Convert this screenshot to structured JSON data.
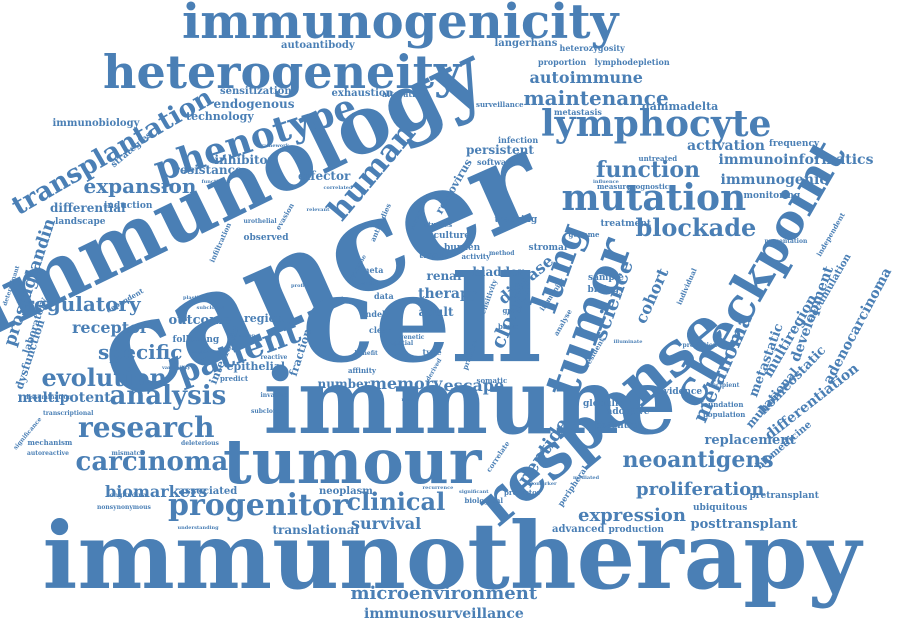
{
  "color": "#4a7fb5",
  "words": [
    {
      "text": "immunotherapy",
      "weight": 100,
      "orientation": "horizontal"
    },
    {
      "text": "cancer",
      "weight": 100,
      "orientation": "rotated"
    },
    {
      "text": "immune",
      "weight": 92,
      "orientation": "horizontal"
    },
    {
      "text": "immunology",
      "weight": 88,
      "orientation": "rotated"
    },
    {
      "text": "cell",
      "weight": 90,
      "orientation": "horizontal"
    },
    {
      "text": "tumour",
      "weight": 80,
      "orientation": "horizontal"
    },
    {
      "text": "response",
      "weight": 78,
      "orientation": "rotated"
    },
    {
      "text": "tumor",
      "weight": 70,
      "orientation": "rotated"
    },
    {
      "text": "immunogenicity",
      "weight": 62,
      "orientation": "horizontal"
    },
    {
      "text": "heterogeneity",
      "weight": 58,
      "orientation": "horizontal"
    },
    {
      "text": "checkpoint",
      "weight": 56,
      "orientation": "rotated"
    },
    {
      "text": "phenotype",
      "weight": 52,
      "orientation": "rotated"
    },
    {
      "text": "lymphocyte",
      "weight": 50,
      "orientation": "horizontal"
    },
    {
      "text": "mutation",
      "weight": 48,
      "orientation": "horizontal"
    },
    {
      "text": "transplantation",
      "weight": 44,
      "orientation": "rotated"
    },
    {
      "text": "lung",
      "weight": 46,
      "orientation": "rotated"
    },
    {
      "text": "progenitor",
      "weight": 42,
      "orientation": "horizontal"
    },
    {
      "text": "patient",
      "weight": 42,
      "orientation": "rotated"
    },
    {
      "text": "carcinoma",
      "weight": 40,
      "orientation": "horizontal"
    },
    {
      "text": "research",
      "weight": 40,
      "orientation": "horizontal"
    },
    {
      "text": "analysis",
      "weight": 38,
      "orientation": "horizontal"
    },
    {
      "text": "human",
      "weight": 38,
      "orientation": "rotated"
    },
    {
      "text": "clinical",
      "weight": 34,
      "orientation": "horizontal"
    },
    {
      "text": "neoantigens",
      "weight": 32,
      "orientation": "horizontal"
    },
    {
      "text": "blockade",
      "weight": 32,
      "orientation": "horizontal"
    },
    {
      "text": "evolution",
      "weight": 32,
      "orientation": "horizontal"
    },
    {
      "text": "expansion",
      "weight": 28,
      "orientation": "horizontal"
    },
    {
      "text": "function",
      "weight": 30,
      "orientation": "horizontal"
    },
    {
      "text": "specific",
      "weight": 30,
      "orientation": "horizontal"
    },
    {
      "text": "regulatory",
      "weight": 28,
      "orientation": "horizontal"
    },
    {
      "text": "maintenance",
      "weight": 26,
      "orientation": "horizontal"
    },
    {
      "text": "proliferation",
      "weight": 26,
      "orientation": "horizontal"
    },
    {
      "text": "expression",
      "weight": 26,
      "orientation": "horizontal"
    },
    {
      "text": "microenvironment",
      "weight": 26,
      "orientation": "horizontal"
    },
    {
      "text": "melanoma",
      "weight": 26,
      "orientation": "rotated"
    },
    {
      "text": "peptide",
      "weight": 26,
      "orientation": "rotated"
    },
    {
      "text": "clonal",
      "weight": 26,
      "orientation": "rotated"
    },
    {
      "text": "science",
      "weight": 26,
      "orientation": "rotated"
    },
    {
      "text": "disease",
      "weight": 24,
      "orientation": "rotated"
    },
    {
      "text": "memory",
      "weight": 24,
      "orientation": "horizontal"
    },
    {
      "text": "biomarkers",
      "weight": 22,
      "orientation": "horizontal"
    },
    {
      "text": "autoimmune",
      "weight": 22,
      "orientation": "horizontal"
    },
    {
      "text": "survival",
      "weight": 22,
      "orientation": "horizontal"
    },
    {
      "text": "receptor",
      "weight": 22,
      "orientation": "horizontal"
    },
    {
      "text": "prostaglandin",
      "weight": 22,
      "orientation": "rotated"
    },
    {
      "text": "immunosurveillance",
      "weight": 20,
      "orientation": "horizontal"
    },
    {
      "text": "escape",
      "weight": 20,
      "orientation": "horizontal"
    },
    {
      "text": "multipotent",
      "weight": 18,
      "orientation": "horizontal"
    },
    {
      "text": "differentiation",
      "weight": 18,
      "orientation": "rotated"
    },
    {
      "text": "immunoinformatics",
      "weight": 16,
      "orientation": "horizontal"
    },
    {
      "text": "activation",
      "weight": 16,
      "orientation": "horizontal"
    },
    {
      "text": "immunogenic",
      "weight": 16,
      "orientation": "horizontal"
    },
    {
      "text": "metastatic",
      "weight": 16,
      "orientation": "rotated"
    },
    {
      "text": "homeostatic",
      "weight": 16,
      "orientation": "rotated"
    },
    {
      "text": "multiregion",
      "weight": 16,
      "orientation": "rotated"
    },
    {
      "text": "development",
      "weight": 16,
      "orientation": "rotated"
    },
    {
      "text": "adenocarcinoma",
      "weight": 16,
      "orientation": "rotated"
    },
    {
      "text": "mutational",
      "weight": 15,
      "orientation": "rotated"
    },
    {
      "text": "cohort",
      "weight": 18,
      "orientation": "rotated"
    },
    {
      "text": "therapy",
      "weight": 16,
      "orientation": "horizontal"
    },
    {
      "text": "outcome",
      "weight": 15,
      "orientation": "horizontal"
    },
    {
      "text": "replacement",
      "weight": 15,
      "orientation": "horizontal"
    },
    {
      "text": "posttransplant",
      "weight": 15,
      "orientation": "horizontal"
    },
    {
      "text": "resistance",
      "weight": 14,
      "orientation": "horizontal"
    },
    {
      "text": "inhibitor",
      "weight": 14,
      "orientation": "horizontal"
    },
    {
      "text": "endogenous",
      "weight": 14,
      "orientation": "horizontal"
    },
    {
      "text": "effector",
      "weight": 14,
      "orientation": "horizontal"
    },
    {
      "text": "differential",
      "weight": 14,
      "orientation": "horizontal"
    },
    {
      "text": "translational",
      "weight": 14,
      "orientation": "horizontal"
    },
    {
      "text": "number",
      "weight": 14,
      "orientation": "horizontal"
    },
    {
      "text": "persistent",
      "weight": 14,
      "orientation": "horizontal"
    },
    {
      "text": "bladder",
      "weight": 14,
      "orientation": "horizontal"
    },
    {
      "text": "technology",
      "weight": 13,
      "orientation": "horizontal"
    },
    {
      "text": "interferon",
      "weight": 13,
      "orientation": "rotated"
    },
    {
      "text": "retrovirus",
      "weight": 13,
      "orientation": "rotated"
    },
    {
      "text": "renal",
      "weight": 13,
      "orientation": "horizontal"
    },
    {
      "text": "adult",
      "weight": 13,
      "orientation": "horizontal"
    },
    {
      "text": "region",
      "weight": 12,
      "orientation": "horizontal"
    },
    {
      "text": "epithelial",
      "weight": 12,
      "orientation": "horizontal"
    },
    {
      "text": "exhaustion",
      "weight": 12,
      "orientation": "horizontal"
    },
    {
      "text": "sensitization",
      "weight": 12,
      "orientation": "horizontal"
    },
    {
      "text": "autoantibody",
      "weight": 12,
      "orientation": "horizontal"
    },
    {
      "text": "langerhans",
      "weight": 12,
      "orientation": "horizontal"
    },
    {
      "text": "gammadelta",
      "weight": 12,
      "orientation": "horizontal"
    },
    {
      "text": "immunobiology",
      "weight": 12,
      "orientation": "horizontal"
    },
    {
      "text": "associated",
      "weight": 12,
      "orientation": "horizontal"
    },
    {
      "text": "neoplasm",
      "weight": 11,
      "orientation": "horizontal"
    },
    {
      "text": "fraction",
      "weight": 12,
      "orientation": "rotated"
    },
    {
      "text": "dysfunction",
      "weight": 12,
      "orientation": "rotated"
    },
    {
      "text": "laboratory",
      "weight": 11,
      "orientation": "rotated"
    },
    {
      "text": "strategies",
      "weight": 11,
      "orientation": "rotated"
    },
    {
      "text": "biomedicine",
      "weight": 11,
      "orientation": "rotated"
    },
    {
      "text": "accumulation",
      "weight": 11,
      "orientation": "rotated"
    },
    {
      "text": "advanced",
      "weight": 11,
      "orientation": "horizontal"
    },
    {
      "text": "production",
      "weight": 10,
      "orientation": "horizontal"
    },
    {
      "text": "pretransplant",
      "weight": 10,
      "orientation": "horizontal"
    },
    {
      "text": "ubiquitous",
      "weight": 10,
      "orientation": "horizontal"
    },
    {
      "text": "potential",
      "weight": 10,
      "orientation": "horizontal"
    },
    {
      "text": "adoptive",
      "weight": 10,
      "orientation": "horizontal"
    },
    {
      "text": "evidence",
      "weight": 10,
      "orientation": "horizontal"
    },
    {
      "text": "monitoring",
      "weight": 10,
      "orientation": "horizontal"
    },
    {
      "text": "frequency",
      "weight": 10,
      "orientation": "horizontal"
    },
    {
      "text": "tracking",
      "weight": 10,
      "orientation": "horizontal"
    },
    {
      "text": "culture",
      "weight": 10,
      "orientation": "horizontal"
    },
    {
      "text": "stromal",
      "weight": 10,
      "orientation": "horizontal"
    },
    {
      "text": "burden",
      "weight": 10,
      "orientation": "horizontal"
    },
    {
      "text": "treatment",
      "weight": 10,
      "orientation": "horizontal"
    },
    {
      "text": "globulin",
      "weight": 10,
      "orientation": "horizontal"
    },
    {
      "text": "biology",
      "weight": 10,
      "orientation": "horizontal"
    },
    {
      "text": "sample",
      "weight": 10,
      "orientation": "horizontal"
    },
    {
      "text": "landscape",
      "weight": 10,
      "orientation": "horizontal"
    },
    {
      "text": "induction",
      "weight": 10,
      "orientation": "horizontal"
    },
    {
      "text": "tissue",
      "weight": 10,
      "orientation": "horizontal"
    },
    {
      "text": "observed",
      "weight": 10,
      "orientation": "horizontal"
    },
    {
      "text": "following",
      "weight": 9,
      "orientation": "horizontal"
    },
    {
      "text": "software",
      "weight": 9,
      "orientation": "horizontal"
    },
    {
      "text": "infection",
      "weight": 9,
      "orientation": "horizontal"
    },
    {
      "text": "metastasis",
      "weight": 9,
      "orientation": "horizontal"
    },
    {
      "text": "proportion",
      "weight": 9,
      "orientation": "horizontal"
    },
    {
      "text": "lymphodepletion",
      "weight": 9,
      "orientation": "horizontal"
    },
    {
      "text": "heterozygosity",
      "weight": 9,
      "orientation": "horizontal"
    },
    {
      "text": "alteration",
      "weight": 9,
      "orientation": "horizontal"
    },
    {
      "text": "surveillance",
      "weight": 8,
      "orientation": "horizontal"
    },
    {
      "text": "measure",
      "weight": 8,
      "orientation": "horizontal"
    },
    {
      "text": "prognostic",
      "weight": 8,
      "orientation": "horizontal"
    },
    {
      "text": "untreated",
      "weight": 8,
      "orientation": "horizontal"
    },
    {
      "text": "dependent",
      "weight": 8,
      "orientation": "rotated"
    },
    {
      "text": "independent",
      "weight": 8,
      "orientation": "rotated"
    },
    {
      "text": "individual",
      "weight": 8,
      "orientation": "rotated"
    },
    {
      "text": "presentation",
      "weight": 7,
      "orientation": "horizontal"
    },
    {
      "text": "population",
      "weight": 8,
      "orientation": "horizontal"
    },
    {
      "text": "foundation",
      "weight": 8,
      "orientation": "horizontal"
    },
    {
      "text": "recipient",
      "weight": 7,
      "orientation": "horizontal"
    },
    {
      "text": "prediction",
      "weight": 7,
      "orientation": "horizontal"
    },
    {
      "text": "predictor",
      "weight": 8,
      "orientation": "horizontal"
    },
    {
      "text": "biological",
      "weight": 8,
      "orientation": "horizontal"
    },
    {
      "text": "correlate",
      "weight": 8,
      "orientation": "rotated"
    },
    {
      "text": "peripheral",
      "weight": 9,
      "orientation": "rotated"
    },
    {
      "text": "studies",
      "weight": 8,
      "orientation": "horizontal"
    },
    {
      "text": "activity",
      "weight": 8,
      "orientation": "horizontal"
    },
    {
      "text": "method",
      "weight": 7,
      "orientation": "horizontal"
    },
    {
      "text": "genome",
      "weight": 8,
      "orientation": "horizontal"
    },
    {
      "text": "immunity",
      "weight": 8,
      "orientation": "rotated"
    },
    {
      "text": "sensitivity",
      "weight": 8,
      "orientation": "rotated"
    },
    {
      "text": "analyse",
      "weight": 8,
      "orientation": "rotated"
    },
    {
      "text": "resident",
      "weight": 8,
      "orientation": "rotated"
    },
    {
      "text": "practice",
      "weight": 8,
      "orientation": "rotated"
    },
    {
      "text": "graft",
      "weight": 8,
      "orientation": "horizontal"
    },
    {
      "text": "basic",
      "weight": 8,
      "orientation": "horizontal"
    },
    {
      "text": "somatic",
      "weight": 8,
      "orientation": "horizontal"
    },
    {
      "text": "affinity",
      "weight": 8,
      "orientation": "horizontal"
    },
    {
      "text": "derived",
      "weight": 7,
      "orientation": "rotated"
    },
    {
      "text": "type",
      "weight": 9,
      "orientation": "horizontal"
    },
    {
      "text": "meta",
      "weight": 9,
      "orientation": "horizontal"
    },
    {
      "text": "data",
      "weight": 9,
      "orientation": "horizontal"
    },
    {
      "text": "clear",
      "weight": 9,
      "orientation": "horizontal"
    },
    {
      "text": "indels",
      "weight": 9,
      "orientation": "horizontal"
    },
    {
      "text": "spatial",
      "weight": 7,
      "orientation": "horizontal"
    },
    {
      "text": "genetic",
      "weight": 7,
      "orientation": "horizontal"
    },
    {
      "text": "benefit",
      "weight": 7,
      "orientation": "horizontal"
    },
    {
      "text": "reactive",
      "weight": 7,
      "orientation": "horizontal"
    },
    {
      "text": "predict",
      "weight": 8,
      "orientation": "horizontal"
    },
    {
      "text": "invasive",
      "weight": 7,
      "orientation": "horizontal"
    },
    {
      "text": "subclone",
      "weight": 7,
      "orientation": "horizontal"
    },
    {
      "text": "deleterious",
      "weight": 7,
      "orientation": "horizontal"
    },
    {
      "text": "transcriptional",
      "weight": 7,
      "orientation": "horizontal"
    },
    {
      "text": "mechanism",
      "weight": 8,
      "orientation": "horizontal"
    },
    {
      "text": "autoreactive",
      "weight": 7,
      "orientation": "horizontal"
    },
    {
      "text": "mismatch",
      "weight": 7,
      "orientation": "horizontal"
    },
    {
      "text": "longitudinal",
      "weight": 7,
      "orientation": "horizontal"
    },
    {
      "text": "nonsynonymous",
      "weight": 7,
      "orientation": "horizontal"
    },
    {
      "text": "understanding",
      "weight": 6,
      "orientation": "horizontal"
    },
    {
      "text": "significance",
      "weight": 7,
      "orientation": "rotated"
    },
    {
      "text": "dissemination",
      "weight": 7,
      "orientation": "horizontal"
    },
    {
      "text": "variability",
      "weight": 6,
      "orientation": "horizontal"
    },
    {
      "text": "suppress",
      "weight": 6,
      "orientation": "horizontal"
    },
    {
      "text": "plasticity",
      "weight": 6,
      "orientation": "horizontal"
    },
    {
      "text": "subclonal",
      "weight": 6,
      "orientation": "horizontal"
    },
    {
      "text": "detection",
      "weight": 6,
      "orientation": "horizontal"
    },
    {
      "text": "functional",
      "weight": 6,
      "orientation": "horizontal"
    },
    {
      "text": "relevant",
      "weight": 6,
      "orientation": "horizontal"
    },
    {
      "text": "correlated",
      "weight": 6,
      "orientation": "horizontal"
    },
    {
      "text": "determinant",
      "weight": 7,
      "orientation": "rotated"
    },
    {
      "text": "infiltration",
      "weight": 8,
      "orientation": "rotated"
    },
    {
      "text": "evasion",
      "weight": 8,
      "orientation": "rotated"
    },
    {
      "text": "urothelial",
      "weight": 7,
      "orientation": "horizontal"
    },
    {
      "text": "antibodies",
      "weight": 8,
      "orientation": "rotated"
    },
    {
      "text": "recognition",
      "weight": 7,
      "orientation": "rotated"
    },
    {
      "text": "cytokine",
      "weight": 7,
      "orientation": "rotated"
    },
    {
      "text": "profile",
      "weight": 6,
      "orientation": "horizontal"
    },
    {
      "text": "whole",
      "weight": 6,
      "orientation": "horizontal"
    },
    {
      "text": "model",
      "weight": 6,
      "orientation": "horizontal"
    },
    {
      "text": "recurrence",
      "weight": 5,
      "orientation": "horizontal"
    },
    {
      "text": "significant",
      "weight": 5,
      "orientation": "horizontal"
    },
    {
      "text": "biomarker",
      "weight": 5,
      "orientation": "horizontal"
    },
    {
      "text": "mediated",
      "weight": 5,
      "orientation": "horizontal"
    },
    {
      "text": "illuminate",
      "weight": 5,
      "orientation": "horizontal"
    },
    {
      "text": "influence",
      "weight": 5,
      "orientation": "horizontal"
    },
    {
      "text": "framework",
      "weight": 5,
      "orientation": "horizontal"
    }
  ]
}
